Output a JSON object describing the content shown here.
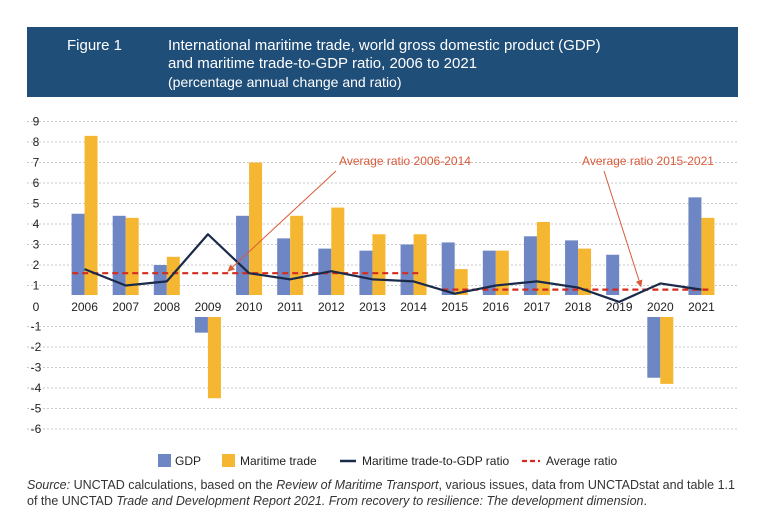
{
  "figure": {
    "label": "Figure 1",
    "title_line1": "International maritime trade, world gross domestic product (GDP)",
    "title_line2": "and maritime trade-to-GDP ratio, 2006 to 2021",
    "subtitle": "(percentage annual change and ratio)"
  },
  "colors": {
    "header_bg": "#1f4e79",
    "gdp": "#6f86c4",
    "maritime": "#f5b731",
    "ratio_line": "#1a2a4a",
    "average": "#d52b1e",
    "annotation": "#d95b3a"
  },
  "chart_data": {
    "type": "bar",
    "categories": [
      "2006",
      "2007",
      "2008",
      "2009",
      "2010",
      "2011",
      "2012",
      "2013",
      "2014",
      "2015",
      "2016",
      "2017",
      "2018",
      "2019",
      "2020",
      "2021"
    ],
    "series": [
      {
        "name": "GDP",
        "type": "bar",
        "values": [
          4.5,
          4.4,
          2.0,
          -1.3,
          4.4,
          3.3,
          2.8,
          2.7,
          3.0,
          3.1,
          2.7,
          3.4,
          3.2,
          2.5,
          -3.5,
          5.3
        ]
      },
      {
        "name": "Maritime trade",
        "type": "bar",
        "values": [
          8.3,
          4.3,
          2.4,
          -4.5,
          7.0,
          4.4,
          4.8,
          3.5,
          3.5,
          1.8,
          2.7,
          4.1,
          2.8,
          0.5,
          -3.8,
          4.3
        ]
      },
      {
        "name": "Maritime trade-to-GDP ratio",
        "type": "line",
        "values": [
          1.8,
          1.0,
          1.2,
          3.5,
          1.6,
          1.3,
          1.7,
          1.3,
          1.2,
          0.6,
          1.0,
          1.2,
          0.9,
          0.2,
          1.1,
          0.8
        ]
      },
      {
        "name": "Average ratio",
        "type": "dashed-line",
        "segments": [
          {
            "label": "Average ratio 2006-2014",
            "from": "2006",
            "to": "2014",
            "value": 1.6
          },
          {
            "label": "Average ratio 2015-2021",
            "from": "2015",
            "to": "2021",
            "value": 0.8
          }
        ]
      }
    ],
    "ylim": [
      -6,
      9
    ],
    "yticks": [
      "9",
      "8",
      "7",
      "6",
      "5",
      "4",
      "3",
      "2",
      "1",
      "0",
      "-1",
      "-2",
      "-3",
      "-4",
      "-5",
      "-6"
    ],
    "grid": true,
    "legend_position": "bottom"
  },
  "legend": {
    "gdp": "GDP",
    "maritime": "Maritime trade",
    "ratio": "Maritime trade-to-GDP ratio",
    "average": "Average ratio"
  },
  "source": {
    "prefix": "Source:",
    "text1": " UNCTAD calculations, based on the ",
    "italic1": "Review of Maritime Transport",
    "text2": ", various issues, data from UNCTADstat and table 1.1 of the UNCTAD ",
    "italic2": "Trade and Development Report 2021. From recovery to resilience: The development dimension",
    "text3": "."
  }
}
